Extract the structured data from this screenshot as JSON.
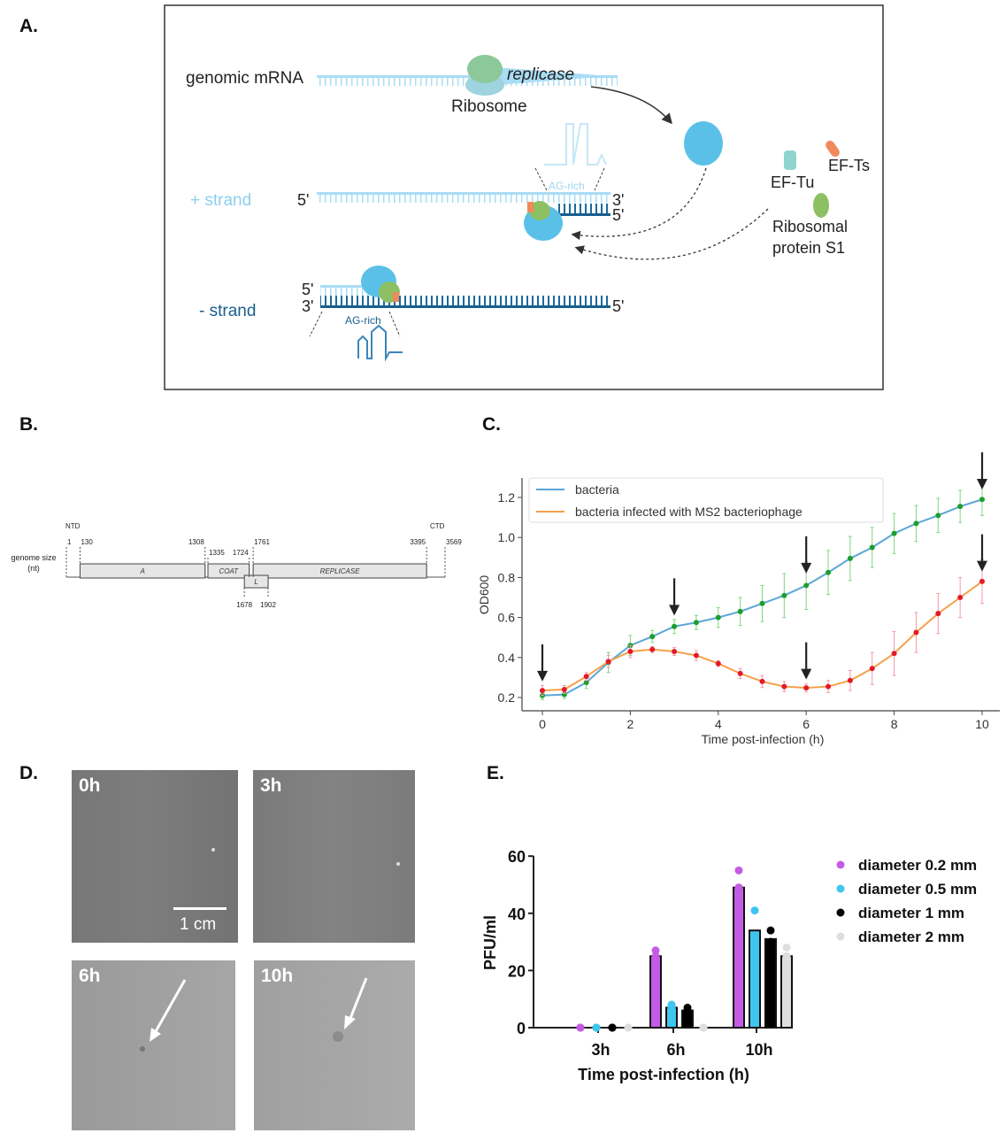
{
  "panels": {
    "A": {
      "label": "A.",
      "genomic_mrna": "genomic mRNA",
      "replicase": "replicase",
      "ribosome": "Ribosome",
      "plus_strand": "+ strand",
      "minus_strand": "- strand",
      "five_prime": "5'",
      "three_prime": "3'",
      "ag_rich": "AG-rich",
      "ef_tu": "EF-Tu",
      "ef_ts": "EF-Ts",
      "s1_line1": "Ribosomal",
      "s1_line2": "protein S1",
      "colors": {
        "light_strand": "#a9dcf5",
        "dark_strand": "#1a5e8c",
        "ribosome_blue": "#5bc0e8",
        "green": "#8cc063",
        "orange": "#f08a5d"
      }
    },
    "B": {
      "label": "B.",
      "ntd": "NTD",
      "ctd": "CTD",
      "axis_label_1": "genome size",
      "axis_label_2": "(nt)",
      "genes": [
        {
          "name": "A",
          "start": 130,
          "end": 1308
        },
        {
          "name": "COAT",
          "start": 1335,
          "end": 1724
        },
        {
          "name": "REPLICASE",
          "start": 1761,
          "end": 3395
        },
        {
          "name": "L",
          "start": 1678,
          "end": 1902
        }
      ],
      "top_ticks": [
        "1",
        "130",
        "1308",
        "1335",
        "1724",
        "1761",
        "3395",
        "3569"
      ],
      "bottom_ticks": [
        "1678",
        "1902"
      ]
    },
    "D": {
      "label": "D.",
      "photos": [
        {
          "time": "0h"
        },
        {
          "time": "3h"
        },
        {
          "time": "6h"
        },
        {
          "time": "10h"
        }
      ],
      "scale_bar": "1 cm"
    }
  },
  "chart_data": [
    {
      "panel_label": "C.",
      "type": "line",
      "xlabel": "Time post-infection (h)",
      "ylabel": "OD600",
      "xlim": [
        -0.4,
        10.4
      ],
      "ylim": [
        0.15,
        1.28
      ],
      "xticks": [
        "0",
        "2",
        "4",
        "6",
        "8",
        "10"
      ],
      "yticks": [
        "0.2",
        "0.4",
        "0.6",
        "0.8",
        "1.0",
        "1.2"
      ],
      "legend": "top-left",
      "grid": false,
      "x": [
        0,
        0.5,
        1,
        1.5,
        2,
        2.5,
        3,
        3.5,
        4,
        4.5,
        5,
        5.5,
        6,
        6.5,
        7,
        7.5,
        8,
        8.5,
        9,
        9.5,
        10
      ],
      "series": [
        {
          "name": "bacteria",
          "line_color": "#5aa7d6",
          "marker_color": "#1a9e2c",
          "error_color": "#7fd77f",
          "values": [
            0.21,
            0.215,
            0.275,
            0.375,
            0.46,
            0.505,
            0.555,
            0.575,
            0.6,
            0.63,
            0.67,
            0.71,
            0.76,
            0.825,
            0.895,
            0.95,
            1.02,
            1.07,
            1.11,
            1.155,
            1.19
          ],
          "errors": [
            0.02,
            0.02,
            0.03,
            0.05,
            0.05,
            0.03,
            0.035,
            0.035,
            0.05,
            0.07,
            0.09,
            0.11,
            0.12,
            0.11,
            0.11,
            0.1,
            0.1,
            0.09,
            0.085,
            0.08,
            0.08
          ]
        },
        {
          "name": "bacteria infected with MS2 bacteriophage",
          "line_color": "#f5a04a",
          "marker_color": "#e3192a",
          "error_color": "#f59aa0",
          "values": [
            0.235,
            0.24,
            0.305,
            0.38,
            0.43,
            0.44,
            0.43,
            0.41,
            0.37,
            0.32,
            0.28,
            0.255,
            0.248,
            0.255,
            0.285,
            0.345,
            0.42,
            0.525,
            0.62,
            0.7,
            0.78
          ],
          "errors": [
            0.025,
            0.02,
            0.02,
            0.03,
            0.03,
            0.015,
            0.02,
            0.025,
            0.015,
            0.025,
            0.03,
            0.025,
            0.02,
            0.03,
            0.05,
            0.08,
            0.11,
            0.1,
            0.1,
            0.1,
            0.11
          ]
        }
      ],
      "arrows_at_x": [
        0,
        3,
        6,
        6,
        10,
        10
      ],
      "arrows_tip_y": [
        0.28,
        0.61,
        0.82,
        0.29,
        1.24,
        0.83
      ]
    },
    {
      "panel_label": "E.",
      "type": "bar",
      "xlabel": "Time post-infection (h)",
      "ylabel": "PFU/ml",
      "ylim": [
        0,
        60
      ],
      "yticks": [
        "0",
        "20",
        "40",
        "60"
      ],
      "categories": [
        "3h",
        "6h",
        "10h"
      ],
      "legend": "right",
      "series": [
        {
          "name": "diameter 0.2 mm",
          "color": "#c45be6",
          "values": [
            0,
            25,
            49
          ],
          "points": [
            [
              0,
              0,
              0
            ],
            [
              27,
              25,
              24
            ],
            [
              55,
              49,
              49
            ]
          ]
        },
        {
          "name": "diameter 0.5 mm",
          "color": "#3ec6ef",
          "values": [
            0,
            7,
            34
          ],
          "points": [
            [
              0,
              0,
              0
            ],
            [
              8,
              8,
              7
            ],
            [
              41,
              32,
              30
            ]
          ]
        },
        {
          "name": "diameter 1 mm",
          "color": "#000000",
          "values": [
            0,
            6,
            31
          ],
          "points": [
            [
              0,
              0,
              0
            ],
            [
              7,
              6,
              6
            ],
            [
              34,
              30,
              30
            ]
          ]
        },
        {
          "name": "diameter 2 mm",
          "color": "#dedede",
          "values": [
            0,
            0,
            25
          ],
          "points": [
            [
              0,
              0,
              0
            ],
            [
              0,
              0,
              0
            ],
            [
              28,
              25,
              24
            ]
          ]
        }
      ]
    }
  ]
}
